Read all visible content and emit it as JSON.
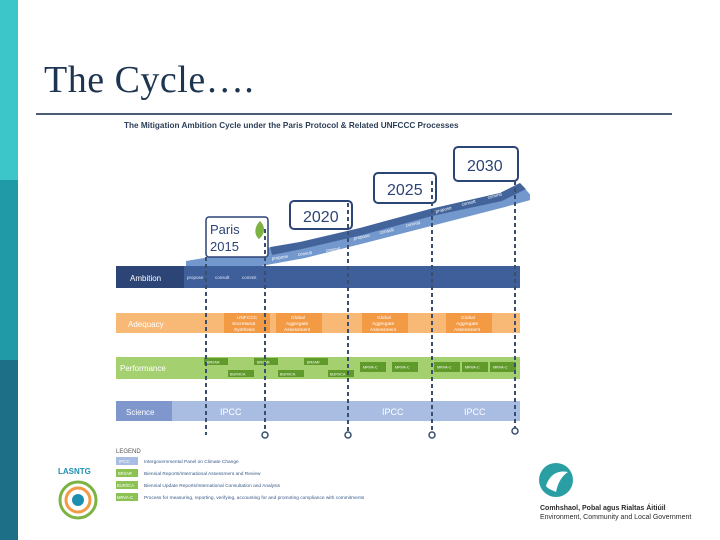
{
  "slide": {
    "title": "The Cycle…."
  },
  "diagram": {
    "heading": "The Mitigation Ambition Cycle under the Paris Protocol & Related UNFCCC Processes",
    "years": {
      "paris_line1": "Paris",
      "paris_line2": "2015",
      "y2020": "2020",
      "y2025": "2025",
      "y2030": "2030"
    },
    "steps": {
      "propose": "propose",
      "consult": "consult",
      "commit": "commit"
    },
    "rows": {
      "ambition": "Ambition",
      "adequacy": "Adequacy",
      "performance": "Performance",
      "science": "Science"
    },
    "adequacy_boxes": {
      "unfccc_line1": "UNFCCC",
      "unfccc_line2": "Secretariat",
      "unfccc_line3": "Synthesis",
      "global_line1": "Global",
      "global_line2": "Aggregate",
      "global_line3": "Assessment"
    },
    "performance_tags": {
      "brrar": "BR/IAR",
      "burica": "BUR/ICA",
      "mrva": "MRVA-C"
    },
    "science_label": "IPCC",
    "legend": {
      "heading": "LEGEND",
      "items": [
        {
          "tag": "IPCC",
          "text": "Intergovernmental Panel on Climate Change"
        },
        {
          "tag": "BR/IAR",
          "text": "Biennial Reports/International Assessment and Review"
        },
        {
          "tag": "BUR/ICA",
          "text": "Biennial Update Reports/International Consultation and Analysis"
        },
        {
          "tag": "MRVA-C",
          "text": "Process for measuring, reporting, verifying, accounting for and promoting compliance with commitments"
        }
      ]
    }
  },
  "logos": {
    "left_text": "LASNTG",
    "right_line1": "Comhshaol, Pobal agus Rialtas Áitiúil",
    "right_line2": "Environment, Community and Local Government"
  },
  "colors": {
    "ambition": "#3f5f9a",
    "adequacy": "#f5a85a",
    "performance": "#8cc153",
    "science": "#8fa8d6",
    "dashed": "#3a4f6e",
    "title": "#1d3550"
  }
}
